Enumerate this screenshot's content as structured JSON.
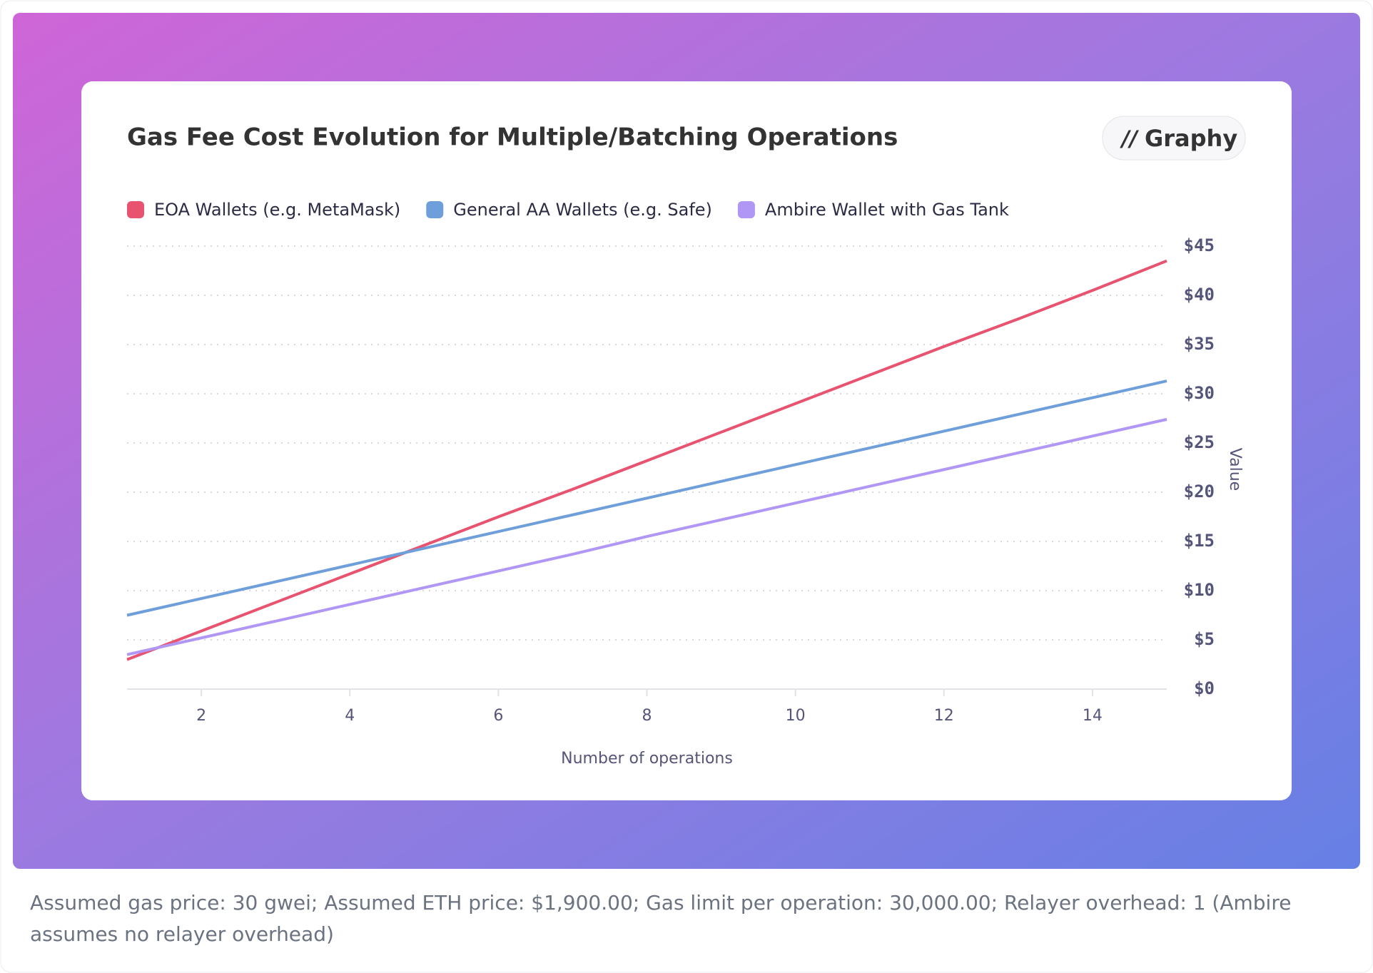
{
  "chart_data": {
    "type": "line",
    "title": "Gas Fee Cost Evolution for Multiple/Batching Operations",
    "brand": "Graphy",
    "x_label": "Number of operations",
    "y_label": "Value",
    "x": [
      1,
      2,
      3,
      4,
      5,
      6,
      7,
      8,
      9,
      10,
      11,
      12,
      13,
      14,
      15
    ],
    "series": [
      {
        "name": "EOA Wallets (e.g. MetaMask)",
        "color": "#e8536f",
        "values": [
          3.0,
          5.9,
          8.8,
          11.7,
          14.6,
          17.5,
          20.3,
          23.2,
          26.1,
          29.0,
          31.9,
          34.8,
          37.6,
          40.5,
          43.5
        ]
      },
      {
        "name": "General AA Wallets (e.g. Safe)",
        "color": "#6e9fdb",
        "values": [
          7.5,
          9.2,
          10.9,
          12.6,
          14.3,
          16.0,
          17.7,
          19.4,
          21.1,
          22.8,
          24.5,
          26.2,
          27.9,
          29.6,
          31.3
        ]
      },
      {
        "name": "Ambire Wallet with Gas Tank",
        "color": "#b197f5",
        "values": [
          3.5,
          5.2,
          6.9,
          8.6,
          10.3,
          12.0,
          13.7,
          15.5,
          17.2,
          18.9,
          20.6,
          22.3,
          24.0,
          25.7,
          27.4
        ]
      }
    ],
    "xlim": [
      1,
      15
    ],
    "xticks": [
      2,
      4,
      6,
      8,
      10,
      12,
      14
    ],
    "ylim": [
      0,
      45
    ],
    "yticks": [
      {
        "value": 0,
        "label": "$0"
      },
      {
        "value": 5,
        "label": "$5"
      },
      {
        "value": 10,
        "label": "$10"
      },
      {
        "value": 15,
        "label": "$15"
      },
      {
        "value": 20,
        "label": "$20"
      },
      {
        "value": 25,
        "label": "$25"
      },
      {
        "value": 30,
        "label": "$30"
      },
      {
        "value": 35,
        "label": "$35"
      },
      {
        "value": 40,
        "label": "$40"
      },
      {
        "value": 45,
        "label": "$45"
      }
    ],
    "grid": true,
    "y_axis_side": "right",
    "footnote": "Assumed gas price: 30 gwei; Assumed ETH price: $1,900.00; Gas limit per operation: 30,000.00; Relayer overhead: 1 (Ambire assumes no relayer overhead)"
  }
}
